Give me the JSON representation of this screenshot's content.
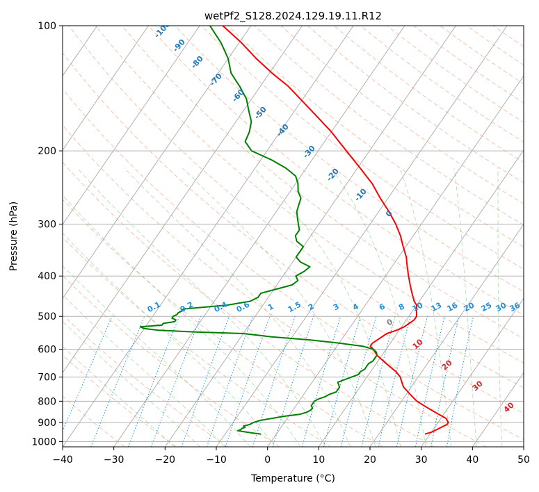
{
  "chart_data": {
    "type": "skew-t",
    "title": "wetPf2_S128.2024.129.19.11.R12",
    "xlabel": "Temperature (°C)",
    "ylabel": "Pressure (hPa)",
    "xlim": [
      -40,
      50
    ],
    "ylim": [
      1030,
      100
    ],
    "y_scale": "log",
    "grid": true,
    "x_ticks": [
      "−40",
      "−30",
      "−20",
      "−10",
      "0",
      "10",
      "20",
      "30",
      "40",
      "50"
    ],
    "y_ticks": [
      "100",
      "200",
      "300",
      "400",
      "500",
      "600",
      "700",
      "800",
      "900",
      "1000"
    ],
    "series": [
      {
        "color": "#ff0000",
        "pressure": [
          960,
          950,
          930,
          910,
          900,
          880,
          860,
          840,
          820,
          800,
          780,
          760,
          740,
          720,
          700,
          680,
          660,
          640,
          620,
          600,
          590,
          580,
          570,
          560,
          550,
          540,
          530,
          520,
          510,
          500,
          490,
          480,
          470,
          460,
          440,
          420,
          400,
          380,
          360,
          340,
          320,
          300,
          280,
          260,
          240,
          220,
          200,
          180,
          165,
          150,
          140,
          130,
          120,
          110,
          100
        ],
        "temperature": [
          29,
          30,
          31,
          32,
          32,
          31,
          29,
          27,
          25,
          23,
          21.5,
          20,
          18.5,
          17.5,
          16.5,
          15,
          13,
          11,
          9,
          7.5,
          6.5,
          6.5,
          7,
          7.5,
          8,
          9.5,
          10.5,
          11,
          11.5,
          11.5,
          11,
          10.5,
          10,
          9,
          7.5,
          6,
          4.5,
          3,
          1.5,
          -0.5,
          -2.5,
          -5,
          -8,
          -11.5,
          -15,
          -19.5,
          -24.5,
          -30,
          -35,
          -40.5,
          -44.5,
          -49.5,
          -54.5,
          -59.5,
          -65.5
        ]
      },
      {
        "color": "#008000",
        "pressure": [
          960,
          955,
          948,
          942,
          936,
          930,
          925,
          918,
          910,
          900,
          890,
          880,
          870,
          860,
          850,
          840,
          830,
          820,
          810,
          800,
          790,
          780,
          770,
          760,
          750,
          740,
          730,
          720,
          710,
          700,
          690,
          680,
          670,
          660,
          650,
          640,
          630,
          620,
          610,
          600,
          590,
          580,
          570,
          560,
          550,
          545,
          540,
          535,
          530,
          525,
          520,
          515,
          510,
          505,
          500,
          495,
          490,
          485,
          480,
          470,
          460,
          450,
          440,
          430,
          420,
          410,
          400,
          390,
          380,
          370,
          360,
          350,
          340,
          330,
          320,
          310,
          300,
          290,
          280,
          270,
          260,
          250,
          240,
          230,
          220,
          210,
          200,
          190,
          180,
          170,
          160,
          150,
          140,
          130,
          120,
          110,
          100
        ],
        "dewpoint": [
          -3,
          -4.5,
          -6.5,
          -8,
          -7.5,
          -7.5,
          -7,
          -7.5,
          -6.5,
          -6,
          -5,
          -3,
          -1,
          2,
          3,
          3.5,
          3.5,
          3,
          3,
          3,
          3.5,
          4.5,
          5,
          6,
          6,
          6,
          5.5,
          5,
          6,
          7,
          8,
          8,
          8.5,
          8.5,
          8.5,
          9,
          9,
          9,
          8.5,
          7.5,
          5,
          0,
          -6,
          -14,
          -20,
          -30,
          -37,
          -40,
          -41,
          -37,
          -37,
          -35,
          -35,
          -36,
          -36,
          -35.5,
          -35.5,
          -35,
          -35,
          -27,
          -23,
          -22,
          -22,
          -19.5,
          -17,
          -16.5,
          -17.5,
          -16.5,
          -16,
          -18.5,
          -20,
          -20,
          -20,
          -22,
          -23,
          -23,
          -24,
          -25,
          -26,
          -26.5,
          -27,
          -28.5,
          -29.5,
          -31,
          -34,
          -38,
          -43,
          -45.5,
          -46,
          -47,
          -49,
          -51,
          -54,
          -57.5,
          -60,
          -63.5,
          -68
        ]
      }
    ],
    "dry_adiabat_labels": [
      "-100",
      "-90",
      "-80",
      "-70",
      "-60",
      "-50",
      "-40",
      "-30",
      "-20",
      "-10",
      "0"
    ],
    "moist_adiabat_labels": [
      "10",
      "20",
      "30",
      "40"
    ],
    "mixing_ratio_labels": [
      "0.1",
      "0.2",
      "0.4",
      "0.6",
      "1",
      "1.5",
      "2",
      "3",
      "4",
      "6",
      "8",
      "10",
      "13",
      "16",
      "20",
      "25",
      "30",
      "36"
    ]
  }
}
